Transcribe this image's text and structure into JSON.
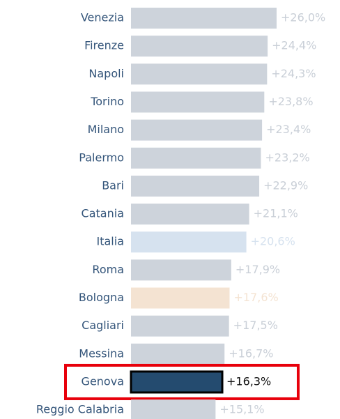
{
  "chart_data": {
    "type": "bar",
    "orientation": "horizontal",
    "categories": [
      "Venezia",
      "Firenze",
      "Napoli",
      "Torino",
      "Milano",
      "Palermo",
      "Bari",
      "Catania",
      "Italia",
      "Roma",
      "Bologna",
      "Cagliari",
      "Messina",
      "Genova",
      "Reggio Calabria"
    ],
    "values": [
      26.0,
      24.4,
      24.3,
      23.8,
      23.4,
      23.2,
      22.9,
      21.1,
      20.6,
      17.9,
      17.6,
      17.5,
      16.7,
      16.3,
      15.1
    ],
    "value_labels": [
      "+26,0%",
      "+24,4%",
      "+24,3%",
      "+23,8%",
      "+23,4%",
      "+23,2%",
      "+22,9%",
      "+21,1%",
      "+20,6%",
      "+17,9%",
      "+17,6%",
      "+17,5%",
      "+16,7%",
      "+16,3%",
      "+15,1%"
    ],
    "colors": [
      "#cdd3db",
      "#cdd3db",
      "#cdd3db",
      "#cdd3db",
      "#cdd3db",
      "#cdd3db",
      "#cdd3db",
      "#cdd3db",
      "#d6e2ef",
      "#cdd3db",
      "#f4e3d2",
      "#cdd3db",
      "#cdd3db",
      "#244b6f",
      "#cdd3db"
    ],
    "highlight": "Genova"
  }
}
